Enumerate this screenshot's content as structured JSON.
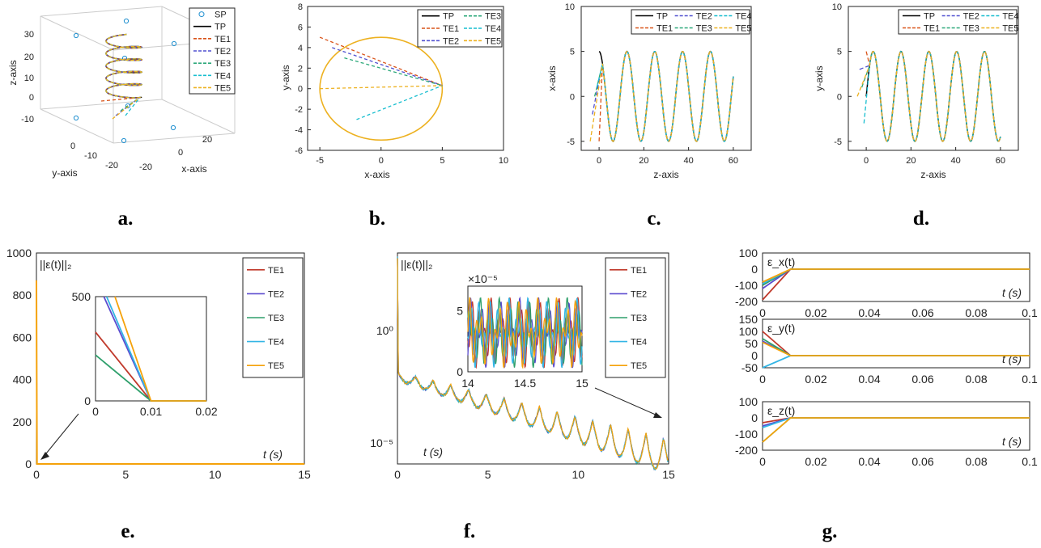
{
  "panel_labels": [
    "a.",
    "b.",
    "c.",
    "d.",
    "e.",
    "f.",
    "g."
  ],
  "colors": {
    "TP": "#000000",
    "TE1": "#d95319",
    "TE2": "#7e2f8e",
    "TE3": "#77ac30",
    "TE4": "#4dbeee",
    "TE5": "#edb120",
    "TE2_dash": "#5050d0",
    "TE3_dash": "#2ca87a",
    "TE4_dash": "#17becf",
    "SP": "#1f8fcf",
    "E1": "#c0392b",
    "E2": "#5c4ccf",
    "E3": "#2e9f6b",
    "E4": "#33b5e5",
    "E5": "#f5a20a"
  },
  "chart_data": [
    {
      "type": "line",
      "id": "a",
      "title": "",
      "xlabel": "x-axis",
      "ylabel": "y-axis",
      "zlabel": "z-axis",
      "xticks": [
        "20",
        "0",
        "-20"
      ],
      "yticks": [
        "0",
        "-10",
        "-20"
      ],
      "zticks": [
        "30",
        "20",
        "10",
        "0",
        "-10"
      ],
      "legend": [
        "SP",
        "TP",
        "TE1",
        "TE2",
        "TE3",
        "TE4",
        "TE5"
      ],
      "legend_position": "top-right",
      "description_series": "helix x=5cos(z), y=5sin(z) for z in [0,30]; SP scattered points"
    },
    {
      "type": "line",
      "id": "b",
      "xlabel": "x-axis",
      "ylabel": "y-axis",
      "xlim": [
        -6,
        10
      ],
      "ylim": [
        -6,
        8
      ],
      "xticks": [
        "-5",
        "0",
        "5",
        "10"
      ],
      "yticks": [
        "8",
        "6",
        "4",
        "2",
        "0",
        "-2",
        "-4",
        "-6"
      ],
      "legend": [
        "TP",
        "TE1",
        "TE2",
        "TE3",
        "TE4",
        "TE5"
      ],
      "legend_position": "top-right",
      "circle": {
        "cx": 0,
        "cy": 0,
        "r": 5
      },
      "starts": {
        "TE1": [
          -5,
          5
        ],
        "TE2": [
          -4,
          4
        ],
        "TE3": [
          -3,
          3
        ],
        "TE4": [
          -2,
          -3
        ],
        "TE5": [
          -5,
          0
        ]
      },
      "converge_to": [
        5,
        0.3
      ]
    },
    {
      "type": "line",
      "id": "c",
      "xlabel": "z-axis",
      "ylabel": "x-axis",
      "xlim": [
        -8,
        68
      ],
      "ylim": [
        -6,
        10
      ],
      "xticks": [
        "0",
        "20",
        "40",
        "60"
      ],
      "yticks": [
        "10",
        "5",
        "0",
        "-5"
      ],
      "legend": [
        "TP",
        "TE1",
        "TE2",
        "TE3",
        "TE4",
        "TE5"
      ],
      "legend_position": "top-right",
      "series_fn": "x=5cos(z/2)",
      "z_range": [
        0,
        60
      ],
      "starts": {
        "TE1": [
          0,
          -5
        ],
        "TE2": [
          -3,
          -2
        ],
        "TE3": [
          -2,
          0
        ],
        "TE4": [
          -1,
          1
        ],
        "TE5": [
          -4,
          -5
        ]
      }
    },
    {
      "type": "line",
      "id": "d",
      "xlabel": "z-axis",
      "ylabel": "y-axis",
      "xlim": [
        -8,
        68
      ],
      "ylim": [
        -6,
        10
      ],
      "xticks": [
        "0",
        "20",
        "40",
        "60"
      ],
      "yticks": [
        "10",
        "5",
        "0",
        "-5"
      ],
      "legend": [
        "TP",
        "TE1",
        "TE2",
        "TE3",
        "TE4",
        "TE5"
      ],
      "legend_position": "top-right",
      "series_fn": "y=5sin(z/2)",
      "z_range": [
        0,
        60
      ],
      "starts": {
        "TE1": [
          0,
          5
        ],
        "TE2": [
          -3,
          3
        ],
        "TE3": [
          -2,
          1
        ],
        "TE4": [
          -1,
          -3
        ],
        "TE5": [
          -4,
          0
        ]
      }
    },
    {
      "type": "line",
      "id": "e",
      "ylabel": "||ε(t)||₂",
      "xlabel": "t (s)",
      "xlim": [
        0,
        15
      ],
      "ylim": [
        0,
        1000
      ],
      "xticks": [
        "0",
        "5",
        "10",
        "15"
      ],
      "yticks": [
        "1000",
        "800",
        "600",
        "400",
        "200",
        "0"
      ],
      "legend": [
        "TE1",
        "TE2",
        "TE3",
        "TE4",
        "TE5"
      ],
      "legend_position": "top-right",
      "inset": {
        "xlim": [
          0,
          0.02
        ],
        "ylim": [
          0,
          500
        ],
        "xticks": [
          "0",
          "0.01",
          "0.02"
        ],
        "yticks": [
          "500",
          "0"
        ],
        "initial": {
          "TE1": 330,
          "TE2": 520,
          "TE3": 220,
          "TE4": 520,
          "TE5": 520
        }
      }
    },
    {
      "type": "line",
      "id": "f",
      "ylabel": "||ε(t)||₂",
      "xlabel": "t (s)",
      "scale": "log",
      "xlim": [
        0,
        15
      ],
      "xticks": [
        "0",
        "5",
        "10",
        "15"
      ],
      "yticks": [
        "10⁰",
        "10⁻⁵"
      ],
      "legend": [
        "TE1",
        "TE2",
        "TE3",
        "TE4",
        "TE5"
      ],
      "legend_position": "top-right",
      "inset": {
        "xlim": [
          14,
          15
        ],
        "ylim": [
          0,
          7
        ],
        "xticks": [
          "14",
          "14.5",
          "15"
        ],
        "yticks": [
          "5",
          "0"
        ],
        "exponent": "×10⁻⁵"
      }
    },
    {
      "type": "line",
      "id": "g",
      "xlabel": "t (s)",
      "xlim": [
        0,
        0.1
      ],
      "xticks": [
        "0",
        "0.02",
        "0.04",
        "0.06",
        "0.08",
        "0.1"
      ],
      "panels": [
        {
          "label": "ε_x(t)",
          "yticks": [
            "100",
            "0",
            "-100",
            "-200"
          ],
          "ylim": [
            -200,
            100
          ],
          "initial": [
            -190,
            -120,
            -100,
            -90,
            -80
          ]
        },
        {
          "label": "ε_y(t)",
          "yticks": [
            "150",
            "100",
            "50",
            "0",
            "-50"
          ],
          "ylim": [
            -50,
            150
          ],
          "initial": [
            100,
            60,
            70,
            -50,
            55
          ]
        },
        {
          "label": "ε_z(t)",
          "yticks": [
            "100",
            "0",
            "-100",
            "-200"
          ],
          "ylim": [
            -200,
            100
          ],
          "initial": [
            -30,
            -50,
            -150,
            -60,
            -150
          ]
        }
      ],
      "legend": [
        "TE1",
        "TE2",
        "TE3",
        "TE4",
        "TE5"
      ]
    }
  ]
}
